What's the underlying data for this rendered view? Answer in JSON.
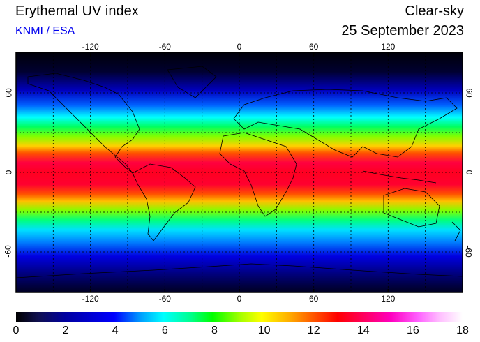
{
  "header": {
    "title": "Erythemal UV index",
    "credit": "KNMI / ESA",
    "sky": "Clear-sky",
    "date": "25 September 2023"
  },
  "map": {
    "lon_ticks": [
      "-120",
      "-60",
      "0",
      "60",
      "120"
    ],
    "lat_ticks": [
      "60",
      "0",
      "-60"
    ],
    "gridlines": "dotted every 30 degrees",
    "uv_bands": [
      {
        "lat_range": [
          60,
          90
        ],
        "uv": "0-2",
        "color": "#000010"
      },
      {
        "lat_range": [
          45,
          60
        ],
        "uv": "3-5",
        "color": "#0000ff"
      },
      {
        "lat_range": [
          30,
          45
        ],
        "uv": "6-8",
        "color": "#00ff00"
      },
      {
        "lat_range": [
          15,
          30
        ],
        "uv": "10-12",
        "color": "#ff6000"
      },
      {
        "lat_range": [
          -15,
          15
        ],
        "uv": "12-14",
        "color": "#ff0000"
      },
      {
        "lat_range": [
          -30,
          -15
        ],
        "uv": "10-12",
        "color": "#ff6000"
      },
      {
        "lat_range": [
          -45,
          -30
        ],
        "uv": "6-8",
        "color": "#00ff00"
      },
      {
        "lat_range": [
          -60,
          -45
        ],
        "uv": "3-5",
        "color": "#0080ff"
      },
      {
        "lat_range": [
          -90,
          -60
        ],
        "uv": "1-3",
        "color": "#000080"
      }
    ]
  },
  "colorbar": {
    "labels": [
      "0",
      "2",
      "4",
      "6",
      "8",
      "10",
      "12",
      "14",
      "16",
      "18"
    ],
    "min": 0,
    "max": 18
  }
}
